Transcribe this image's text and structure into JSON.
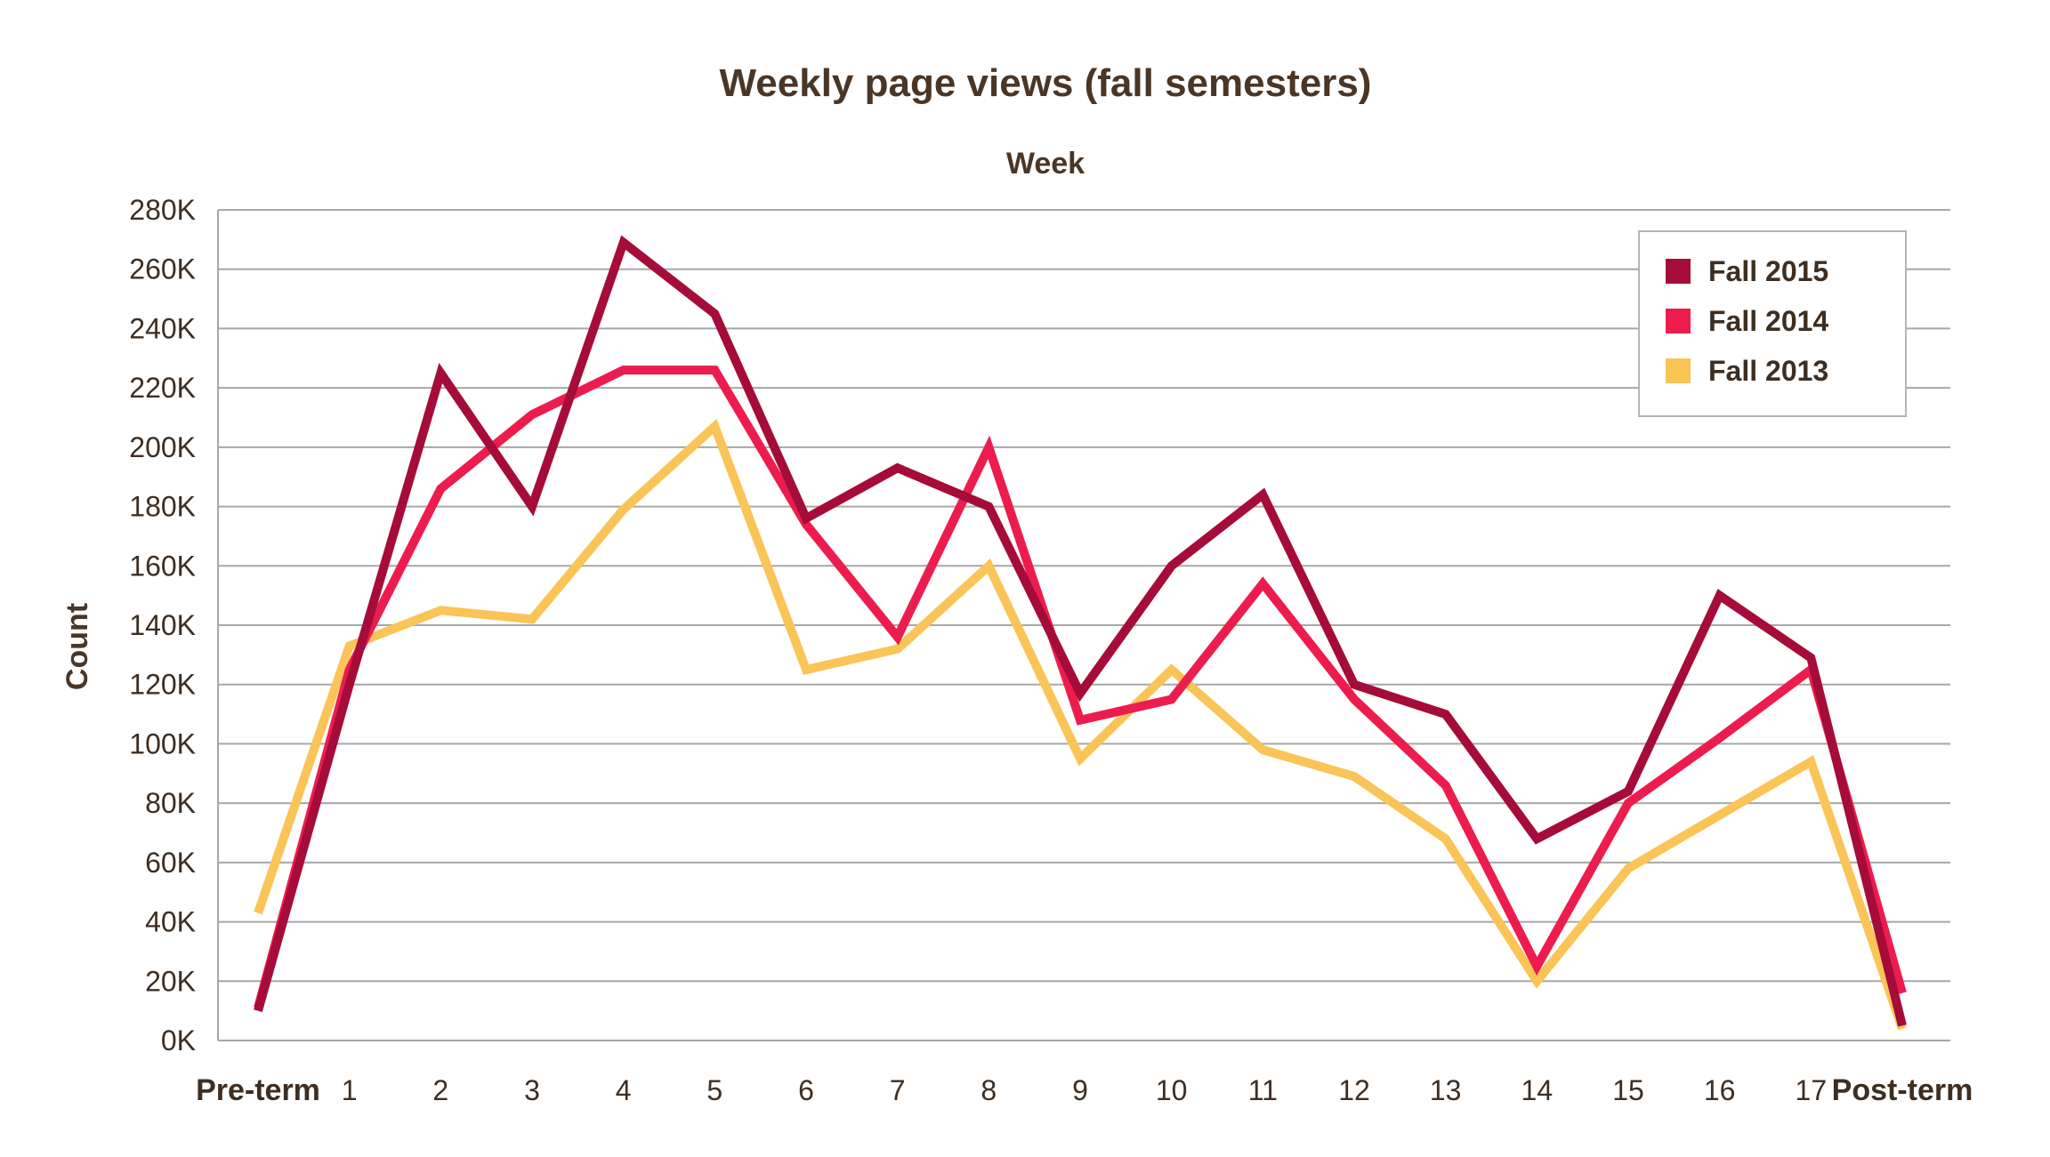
{
  "chart_data": {
    "type": "line",
    "title": "Weekly page views (fall semesters)",
    "xlabel": "Week",
    "ylabel": "Count",
    "ylim": [
      0,
      280000
    ],
    "yticks": [
      0,
      20000,
      40000,
      60000,
      80000,
      100000,
      120000,
      140000,
      160000,
      180000,
      200000,
      220000,
      240000,
      260000,
      280000
    ],
    "ytick_labels": [
      "0K",
      "20K",
      "40K",
      "60K",
      "80K",
      "100K",
      "120K",
      "140K",
      "160K",
      "180K",
      "200K",
      "220K",
      "240K",
      "260K",
      "280K"
    ],
    "categories": [
      "Pre-term",
      "1",
      "2",
      "3",
      "4",
      "5",
      "6",
      "7",
      "8",
      "9",
      "10",
      "11",
      "12",
      "13",
      "14",
      "15",
      "16",
      "17",
      "Post-term"
    ],
    "grid": true,
    "legend_position": "top-right",
    "series": [
      {
        "name": "Fall 2015",
        "color": "#a50c3a",
        "values": [
          10000,
          120000,
          225000,
          180000,
          269000,
          245000,
          176000,
          193000,
          180000,
          117000,
          160000,
          184000,
          120000,
          110000,
          68000,
          84000,
          150000,
          129000,
          5000
        ]
      },
      {
        "name": "Fall 2014",
        "color": "#ec1d4e",
        "values": [
          11000,
          125000,
          186000,
          211000,
          226000,
          226000,
          174000,
          136000,
          200000,
          108000,
          115000,
          154000,
          115000,
          86000,
          25000,
          80000,
          102000,
          125000,
          16000
        ]
      },
      {
        "name": "Fall 2013",
        "color": "#fbc457",
        "values": [
          43000,
          133000,
          145000,
          142000,
          179000,
          207000,
          125000,
          132000,
          160000,
          95000,
          125000,
          98000,
          89000,
          68000,
          20000,
          58000,
          76000,
          94000,
          4000
        ]
      }
    ]
  }
}
